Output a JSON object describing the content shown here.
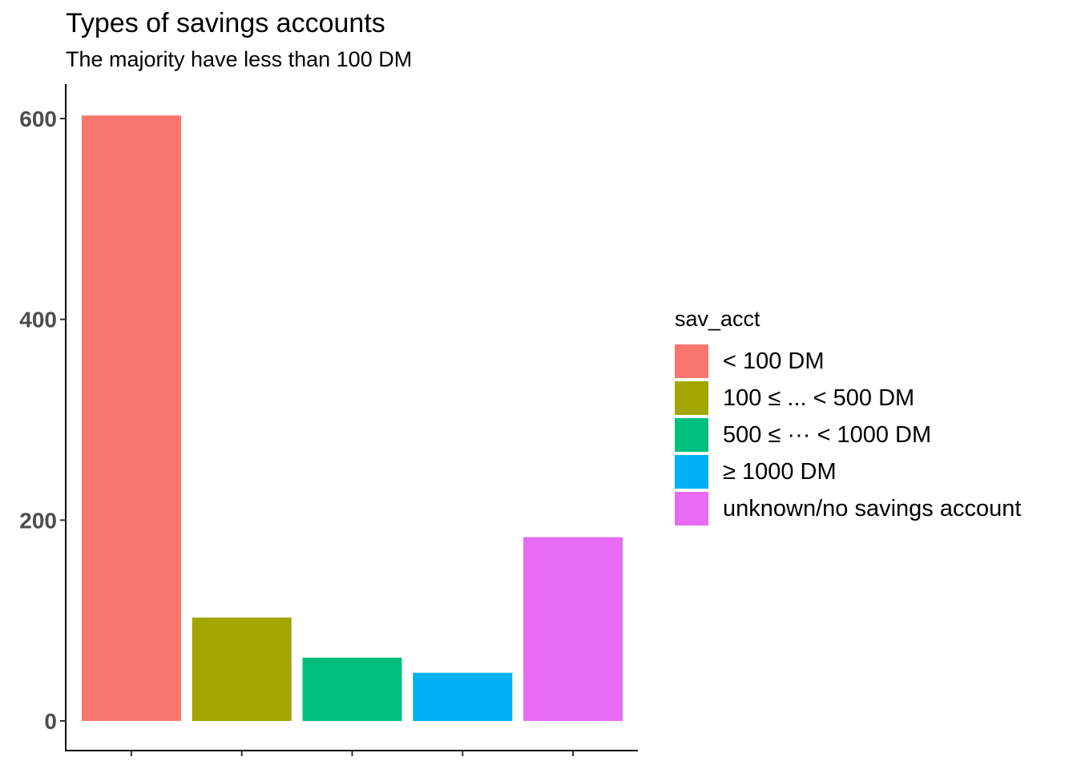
{
  "chart_data": {
    "type": "bar",
    "title": "Types of savings accounts",
    "subtitle": "The majority have less than 100 DM",
    "xlabel": "",
    "ylabel": "",
    "categories": [
      "< 100 DM",
      "100 ≤ ... < 500 DM",
      "500 ≤ ··· < 1000 DM",
      "≥ 1000 DM",
      "unknown/no savings account"
    ],
    "values": [
      603,
      103,
      63,
      48,
      183
    ],
    "colors": [
      "#F8766D",
      "#A3A500",
      "#00BF7D",
      "#00B0F6",
      "#E76BF3"
    ],
    "ylim": [
      0,
      603
    ],
    "yticks": [
      0,
      200,
      400,
      600
    ],
    "grid": false,
    "legend": {
      "title": "sav_acct",
      "position": "right"
    }
  }
}
